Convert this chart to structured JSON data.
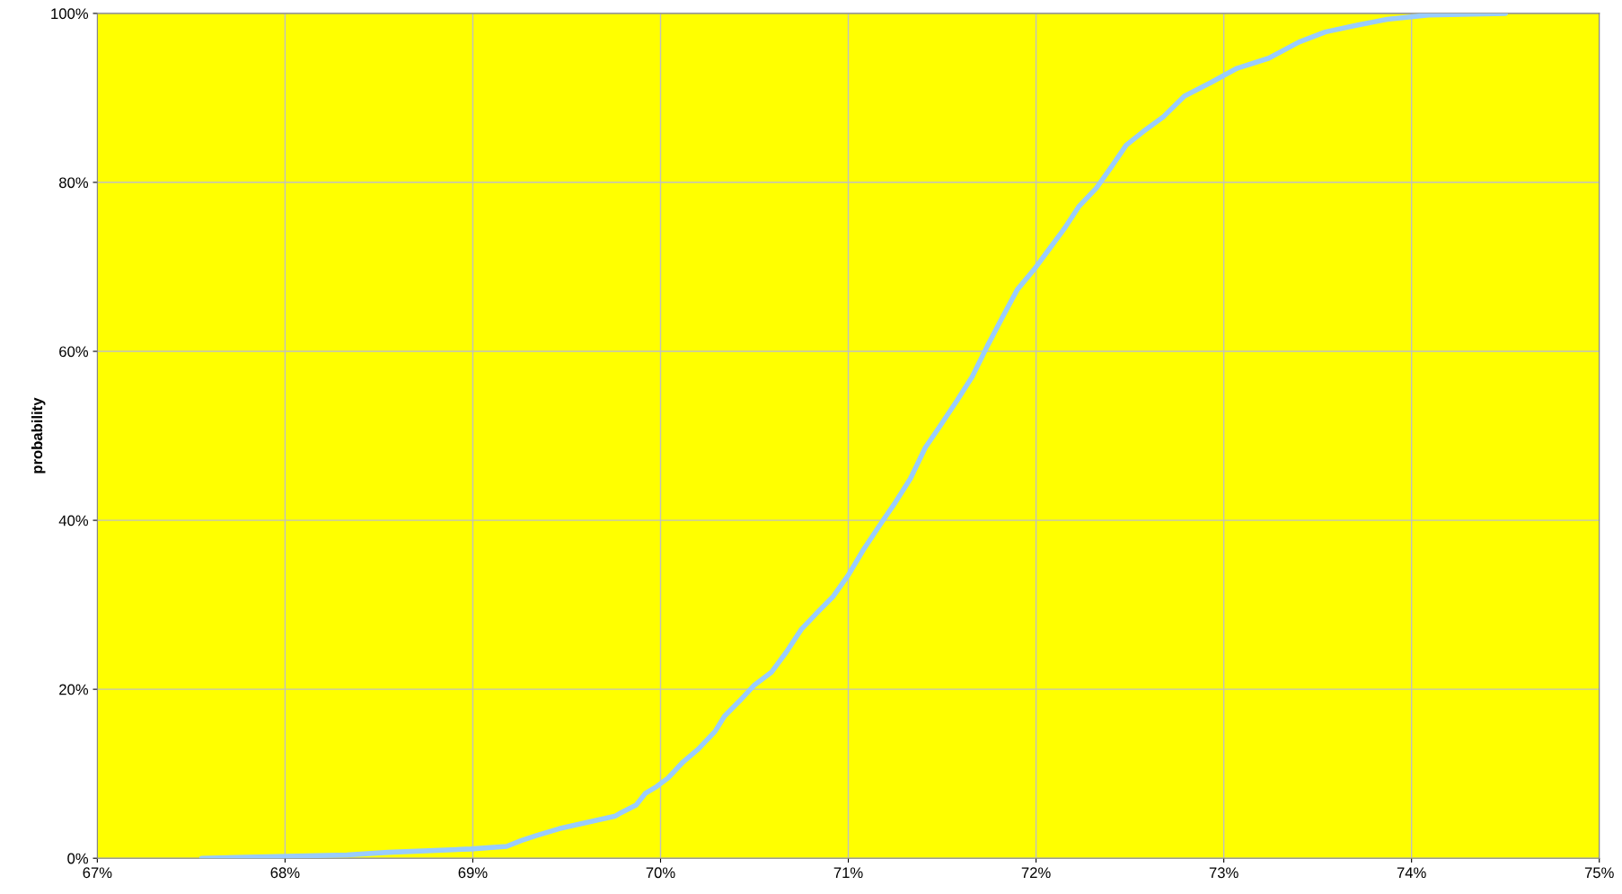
{
  "chart_data": {
    "type": "line",
    "ylabel": "probability",
    "x": [
      67.556,
      68.33,
      68.55,
      68.99,
      69.18,
      69.26,
      69.34,
      69.46,
      69.54,
      69.62,
      69.76,
      69.79,
      69.87,
      69.92,
      69.98,
      70.04,
      70.12,
      70.2,
      70.29,
      70.34,
      70.42,
      70.5,
      70.59,
      70.67,
      70.75,
      70.84,
      70.92,
      71.0,
      71.08,
      71.17,
      71.25,
      71.33,
      71.41,
      71.49,
      71.58,
      71.66,
      71.74,
      71.82,
      71.9,
      71.99,
      72.07,
      72.15,
      72.23,
      72.32,
      72.4,
      72.48,
      72.57,
      72.68,
      72.79,
      72.93,
      73.07,
      73.24,
      73.4,
      73.54,
      73.71,
      73.87,
      74.09,
      74.5
    ],
    "series": [
      {
        "color": "#99ccff",
        "values": [
          0,
          0.4,
          0.7,
          1.1,
          1.4,
          2.1,
          2.7,
          3.5,
          3.9,
          4.3,
          5.0,
          5.4,
          6.3,
          7.7,
          8.5,
          9.5,
          11.4,
          12.9,
          15.0,
          16.8,
          18.6,
          20.5,
          22.0,
          24.4,
          27.1,
          29.2,
          31.0,
          33.5,
          36.5,
          39.5,
          42.1,
          44.9,
          48.6,
          51.2,
          54.2,
          57.0,
          60.6,
          64.0,
          67.3,
          69.7,
          72.1,
          74.5,
          77.2,
          79.3,
          81.8,
          84.4,
          86.0,
          87.8,
          90.2,
          91.8,
          93.5,
          94.7,
          96.6,
          97.8,
          98.6,
          99.3,
          99.8,
          100
        ]
      }
    ],
    "xlim": [
      67,
      75
    ],
    "xticks": [
      {
        "value": 67,
        "label": "67%"
      },
      {
        "value": 68,
        "label": "68%"
      },
      {
        "value": 69,
        "label": "69%"
      },
      {
        "value": 70,
        "label": "70%"
      },
      {
        "value": 71,
        "label": "71%"
      },
      {
        "value": 72,
        "label": "72%"
      },
      {
        "value": 73,
        "label": "73%"
      },
      {
        "value": 74,
        "label": "74%"
      },
      {
        "value": 75,
        "label": "75%"
      }
    ],
    "ylim": [
      0,
      100
    ],
    "yticks": [
      {
        "value": 0,
        "label": "0%"
      },
      {
        "value": 20,
        "label": "20%"
      },
      {
        "value": 40,
        "label": "40%"
      },
      {
        "value": 60,
        "label": "60%"
      },
      {
        "value": 80,
        "label": "80%"
      },
      {
        "value": 100,
        "label": "100%"
      }
    ],
    "grid": true
  }
}
